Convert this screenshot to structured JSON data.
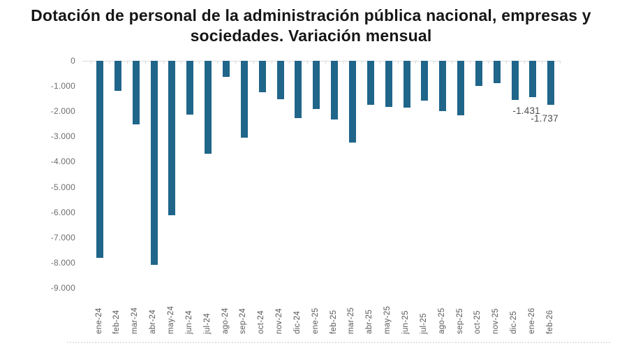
{
  "title": {
    "line1": "Dotación de personal de la administración pública nacional, empresas y",
    "line2": "sociedades. Variación mensual"
  },
  "chart_data": {
    "type": "bar",
    "title": "Dotación de personal de la administración pública nacional, empresas y sociedades. Variación mensual",
    "xlabel": "",
    "ylabel": "",
    "categories": [
      "ene-24",
      "feb-24",
      "mar-24",
      "abr-24",
      "may-24",
      "jun-24",
      "jul-24",
      "ago-24",
      "sep-24",
      "oct-24",
      "nov-24",
      "dic-24",
      "ene-25",
      "feb-25",
      "mar-25",
      "abr-25",
      "may-25",
      "jun-25",
      "jul-25",
      "ago-25",
      "sep-25",
      "oct-25",
      "nov-25",
      "dic-25",
      "ene-26",
      "feb-26"
    ],
    "values": [
      -7820,
      -1190,
      -2510,
      -8090,
      -6120,
      -2140,
      -3680,
      -640,
      -3040,
      -1250,
      -1520,
      -2280,
      -1920,
      -2320,
      -3240,
      -1750,
      -1820,
      -1860,
      -1580,
      -1990,
      -2160,
      -990,
      -890,
      -1560,
      -1431,
      -1737
    ],
    "annotations": [
      {
        "category": "ene-26",
        "label": "-1.431"
      },
      {
        "category": "feb-26",
        "label": "-1.737"
      }
    ],
    "y_ticks": [
      "0",
      "-1.000",
      "-2.000",
      "-3.000",
      "-4.000",
      "-5.000",
      "-6.000",
      "-7.000",
      "-8.000",
      "-9.000"
    ],
    "ylim": [
      -9000,
      0
    ],
    "grid": false,
    "legend": false,
    "bar_color": "#20658a",
    "axis_label_color": "#6e6e6e",
    "annotation_color": "#4d4d4d",
    "title_color": "#161616"
  }
}
